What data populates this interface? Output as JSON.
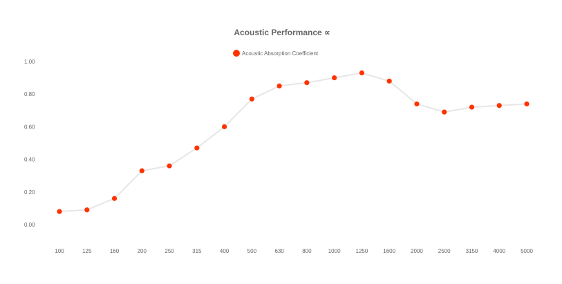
{
  "chart_data": {
    "type": "line",
    "title": "Acoustic Performance ∝",
    "xlabel": "",
    "ylabel": "",
    "categories": [
      "100",
      "125",
      "160",
      "200",
      "250",
      "315",
      "400",
      "500",
      "630",
      "800",
      "1000",
      "1250",
      "1600",
      "2000",
      "2500",
      "3150",
      "4000",
      "5000"
    ],
    "series": [
      {
        "name": "Acoustic Absorption Coefficient",
        "values": [
          0.08,
          0.09,
          0.16,
          0.33,
          0.36,
          0.47,
          0.6,
          0.77,
          0.85,
          0.87,
          0.9,
          0.93,
          0.88,
          0.74,
          0.69,
          0.72,
          0.73,
          0.74
        ]
      }
    ],
    "ylim": [
      0,
      1
    ],
    "yticks": [
      "0.00",
      "0.20",
      "0.40",
      "0.60",
      "0.80",
      "1.00"
    ],
    "grid": false,
    "legend": "top-center",
    "colors": {
      "marker": "#ff3300",
      "line": "#e6e6e6",
      "text": "#666666"
    }
  }
}
